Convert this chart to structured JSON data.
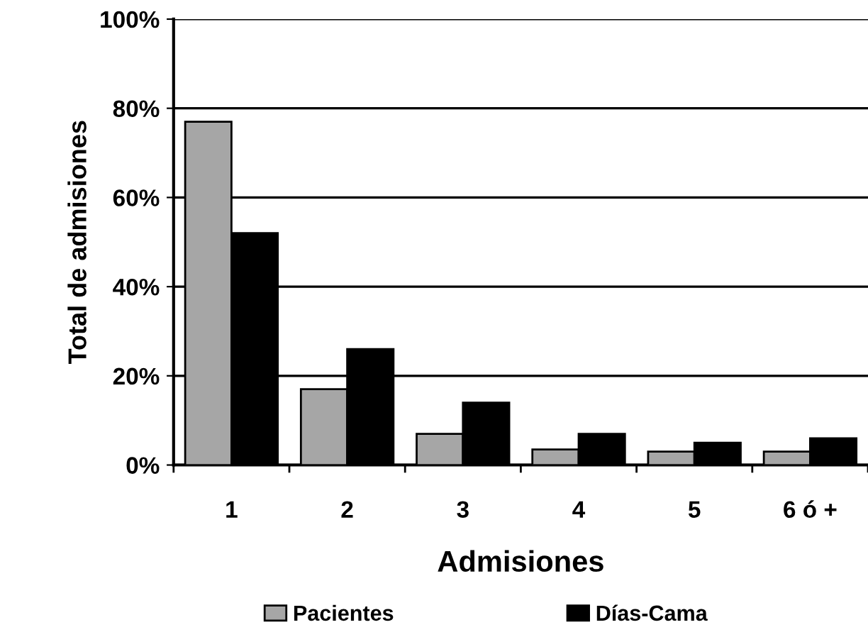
{
  "chart_data": {
    "type": "bar",
    "xlabel": "Admisiones",
    "ylabel": "Total de admisiones",
    "categories": [
      "1",
      "2",
      "3",
      "4",
      "5",
      "6 ó +"
    ],
    "series": [
      {
        "name": "Pacientes",
        "color": "#a6a6a6",
        "values": [
          77,
          17,
          7,
          3.5,
          3,
          3
        ]
      },
      {
        "name": "Días-Cama",
        "color": "#000000",
        "values": [
          52,
          26,
          14,
          7,
          5,
          6
        ]
      }
    ],
    "ylim": [
      0,
      100
    ],
    "yticks": [
      {
        "value": 0,
        "label": "0%"
      },
      {
        "value": 20,
        "label": "20%"
      },
      {
        "value": 40,
        "label": "40%"
      },
      {
        "value": 60,
        "label": "60%"
      },
      {
        "value": 80,
        "label": "80%"
      },
      {
        "value": 100,
        "label": "100%"
      }
    ],
    "grid": "y",
    "legend": "bottom"
  }
}
